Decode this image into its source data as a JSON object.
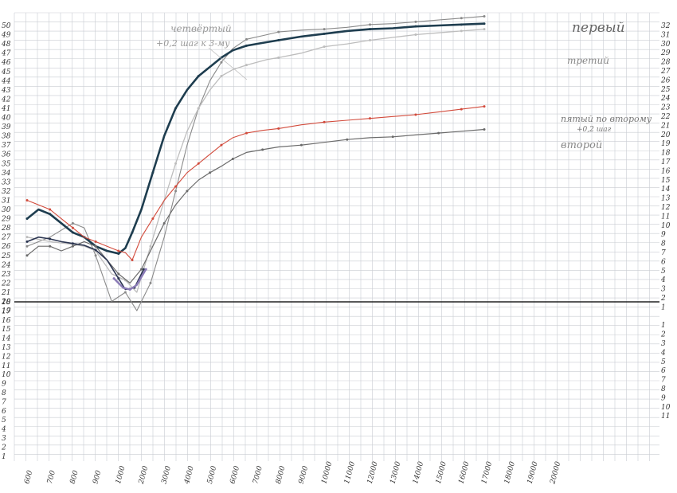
{
  "chart_data": {
    "type": "line",
    "title": "",
    "xlabel": "",
    "ylabel": "",
    "categories": [
      "600",
      "700",
      "800",
      "900",
      "1000",
      "2000",
      "3000",
      "4000",
      "5000",
      "6000",
      "7000",
      "8000",
      "9000",
      "10000",
      "11000",
      "12000",
      "13000",
      "14000",
      "15000",
      "16000",
      "17000",
      "18000",
      "19000",
      "20000"
    ],
    "y_ticks_left": [
      "50",
      "49",
      "48",
      "47",
      "46",
      "45",
      "44",
      "43",
      "42",
      "41",
      "40",
      "39",
      "38",
      "37",
      "36",
      "35",
      "34",
      "33",
      "32",
      "31",
      "30",
      "29",
      "28",
      "27",
      "26",
      "25",
      "24",
      "23",
      "22",
      "21",
      "20",
      "19",
      "18",
      "17",
      "16",
      "15",
      "14",
      "13",
      "12",
      "11",
      "10",
      "9",
      "8",
      "7",
      "6",
      "5",
      "4",
      "3",
      "2",
      "1"
    ],
    "y_ticks_right": [
      "32",
      "31",
      "30",
      "29",
      "28",
      "27",
      "26",
      "25",
      "24",
      "23",
      "22",
      "21",
      "20",
      "19",
      "18",
      "17",
      "16",
      "15",
      "14",
      "13",
      "12",
      "11",
      "10",
      "9",
      "8",
      "7",
      "6",
      "5",
      "4",
      "3",
      "2",
      "1",
      "",
      "1",
      "2",
      "3",
      "4",
      "5",
      "6",
      "7",
      "8",
      "9",
      "10",
      "11"
    ],
    "grid": true,
    "series": [
      {
        "name": "первый",
        "color": "#8a8a8a",
        "width": 1.1,
        "points": [
          [
            0,
            26
          ],
          [
            1,
            27
          ],
          [
            2,
            28.5
          ],
          [
            2.5,
            28
          ],
          [
            3,
            25
          ],
          [
            3.7,
            20
          ],
          [
            4.3,
            21
          ],
          [
            4.8,
            19
          ],
          [
            5.4,
            22
          ],
          [
            6,
            27
          ],
          [
            6.5,
            32
          ],
          [
            7,
            37
          ],
          [
            7.5,
            41
          ],
          [
            8,
            44
          ],
          [
            8.5,
            46
          ],
          [
            9,
            47.5
          ],
          [
            9.6,
            48.5
          ],
          [
            10.5,
            49
          ],
          [
            11,
            49.3
          ],
          [
            12,
            49.5
          ],
          [
            13,
            49.6
          ],
          [
            14,
            49.8
          ],
          [
            15,
            50.1
          ],
          [
            16,
            50.2
          ],
          [
            17,
            50.4
          ],
          [
            18,
            50.6
          ],
          [
            19,
            50.8
          ],
          [
            20,
            51
          ]
        ]
      },
      {
        "name": "третий",
        "color": "#1e3d4f",
        "width": 2.6,
        "points": [
          [
            0,
            29
          ],
          [
            0.5,
            30
          ],
          [
            1,
            29.5
          ],
          [
            1.5,
            28.5
          ],
          [
            2,
            27.5
          ],
          [
            2.5,
            27
          ],
          [
            3,
            26
          ],
          [
            3.5,
            25.5
          ],
          [
            4,
            25.2
          ],
          [
            4.3,
            25.8
          ],
          [
            4.6,
            27.5
          ],
          [
            5,
            30
          ],
          [
            5.5,
            34
          ],
          [
            6,
            38
          ],
          [
            6.5,
            41
          ],
          [
            7,
            43
          ],
          [
            7.5,
            44.5
          ],
          [
            8,
            45.5
          ],
          [
            8.5,
            46.5
          ],
          [
            9,
            47.3
          ],
          [
            9.6,
            47.8
          ],
          [
            10.3,
            48.1
          ],
          [
            11,
            48.4
          ],
          [
            12,
            48.8
          ],
          [
            13,
            49.1
          ],
          [
            14,
            49.4
          ],
          [
            15,
            49.6
          ],
          [
            16,
            49.7
          ],
          [
            17,
            49.9
          ],
          [
            18,
            50
          ],
          [
            19,
            50.1
          ],
          [
            20,
            50.2
          ]
        ]
      },
      {
        "name": "четвёртый +0,2 шаг к 3-му",
        "color": "#bdbdbd",
        "width": 1.3,
        "points": [
          [
            0,
            27
          ],
          [
            1,
            26.5
          ],
          [
            2,
            26.2
          ],
          [
            2.5,
            26
          ],
          [
            3,
            25.5
          ],
          [
            3.7,
            23
          ],
          [
            4.3,
            22.3
          ],
          [
            4.8,
            21
          ],
          [
            5.4,
            26
          ],
          [
            6,
            31
          ],
          [
            6.5,
            35
          ],
          [
            7,
            38.5
          ],
          [
            7.5,
            41
          ],
          [
            8,
            43
          ],
          [
            8.5,
            44.5
          ],
          [
            9,
            45.2
          ],
          [
            9.6,
            45.7
          ],
          [
            10.5,
            46.3
          ],
          [
            11,
            46.5
          ],
          [
            12,
            47
          ],
          [
            13,
            47.7
          ],
          [
            14,
            48
          ],
          [
            15,
            48.4
          ],
          [
            16,
            48.7
          ],
          [
            17,
            49
          ],
          [
            18,
            49.2
          ],
          [
            19,
            49.4
          ],
          [
            20,
            49.6
          ]
        ]
      },
      {
        "name": "пятый по второму +0,2 шаг",
        "color": "#d24b3c",
        "width": 1.1,
        "points": [
          [
            0,
            31
          ],
          [
            0.5,
            30.5
          ],
          [
            1,
            30
          ],
          [
            1.5,
            29
          ],
          [
            2,
            28
          ],
          [
            2.5,
            27
          ],
          [
            3,
            26.5
          ],
          [
            3.5,
            26
          ],
          [
            4,
            25.5
          ],
          [
            4.3,
            25.3
          ],
          [
            4.6,
            24.5
          ],
          [
            5,
            27
          ],
          [
            5.5,
            29
          ],
          [
            6,
            31
          ],
          [
            6.5,
            32.5
          ],
          [
            7,
            34
          ],
          [
            7.5,
            35
          ],
          [
            8,
            36
          ],
          [
            8.5,
            37
          ],
          [
            9,
            37.8
          ],
          [
            9.6,
            38.3
          ],
          [
            10.3,
            38.6
          ],
          [
            11,
            38.8
          ],
          [
            12,
            39.2
          ],
          [
            13,
            39.5
          ],
          [
            14,
            39.7
          ],
          [
            15,
            39.9
          ],
          [
            16,
            40.1
          ],
          [
            17,
            40.3
          ],
          [
            18,
            40.6
          ],
          [
            19,
            40.9
          ],
          [
            20,
            41.2
          ]
        ]
      },
      {
        "name": "второй",
        "color": "#6b6b6b",
        "width": 1.2,
        "points": [
          [
            0,
            25
          ],
          [
            0.5,
            26
          ],
          [
            1,
            26
          ],
          [
            1.5,
            25.5
          ],
          [
            2,
            26
          ],
          [
            2.5,
            26.5
          ],
          [
            3,
            26
          ],
          [
            3.5,
            24.5
          ],
          [
            4,
            23
          ],
          [
            4.5,
            22
          ],
          [
            5,
            23.5
          ],
          [
            5.5,
            26
          ],
          [
            6,
            28.5
          ],
          [
            6.5,
            30.5
          ],
          [
            7,
            32
          ],
          [
            7.5,
            33.2
          ],
          [
            8,
            34
          ],
          [
            8.5,
            34.7
          ],
          [
            9,
            35.5
          ],
          [
            9.6,
            36.2
          ],
          [
            10.3,
            36.5
          ],
          [
            11,
            36.8
          ],
          [
            12,
            37
          ],
          [
            13,
            37.3
          ],
          [
            14,
            37.6
          ],
          [
            15,
            37.8
          ],
          [
            16,
            37.9
          ],
          [
            17,
            38.1
          ],
          [
            18,
            38.3
          ],
          [
            19,
            38.5
          ],
          [
            20,
            38.7
          ]
        ]
      },
      {
        "name": "",
        "color": "#2a3450",
        "width": 1.6,
        "points": [
          [
            0,
            26.5
          ],
          [
            0.5,
            27
          ],
          [
            1,
            26.8
          ],
          [
            1.5,
            26.5
          ],
          [
            2,
            26.3
          ],
          [
            2.5,
            26.1
          ],
          [
            3,
            25.6
          ],
          [
            3.5,
            24.5
          ],
          [
            4,
            22.5
          ],
          [
            4.3,
            21.3
          ],
          [
            4.7,
            21.5
          ],
          [
            5.1,
            23.5
          ]
        ]
      },
      {
        "name": "",
        "color": "#8a7ab6",
        "width": 2.4,
        "points": [
          [
            3.8,
            22.5
          ],
          [
            4.2,
            21.5
          ],
          [
            4.5,
            21.3
          ],
          [
            4.8,
            21.8
          ],
          [
            5.2,
            23.5
          ]
        ]
      }
    ],
    "annotations": [
      {
        "text": "первый",
        "series": 0
      },
      {
        "text": "третий",
        "series": 1
      },
      {
        "text": "пятый по второму",
        "series": 3
      },
      {
        "text": "+0,2 шаг",
        "series": 3
      },
      {
        "text": "второй",
        "series": 4
      },
      {
        "text": "четвёртый",
        "series": 2
      },
      {
        "text": "+0,2 шаг к 3-му",
        "series": 2
      }
    ]
  }
}
